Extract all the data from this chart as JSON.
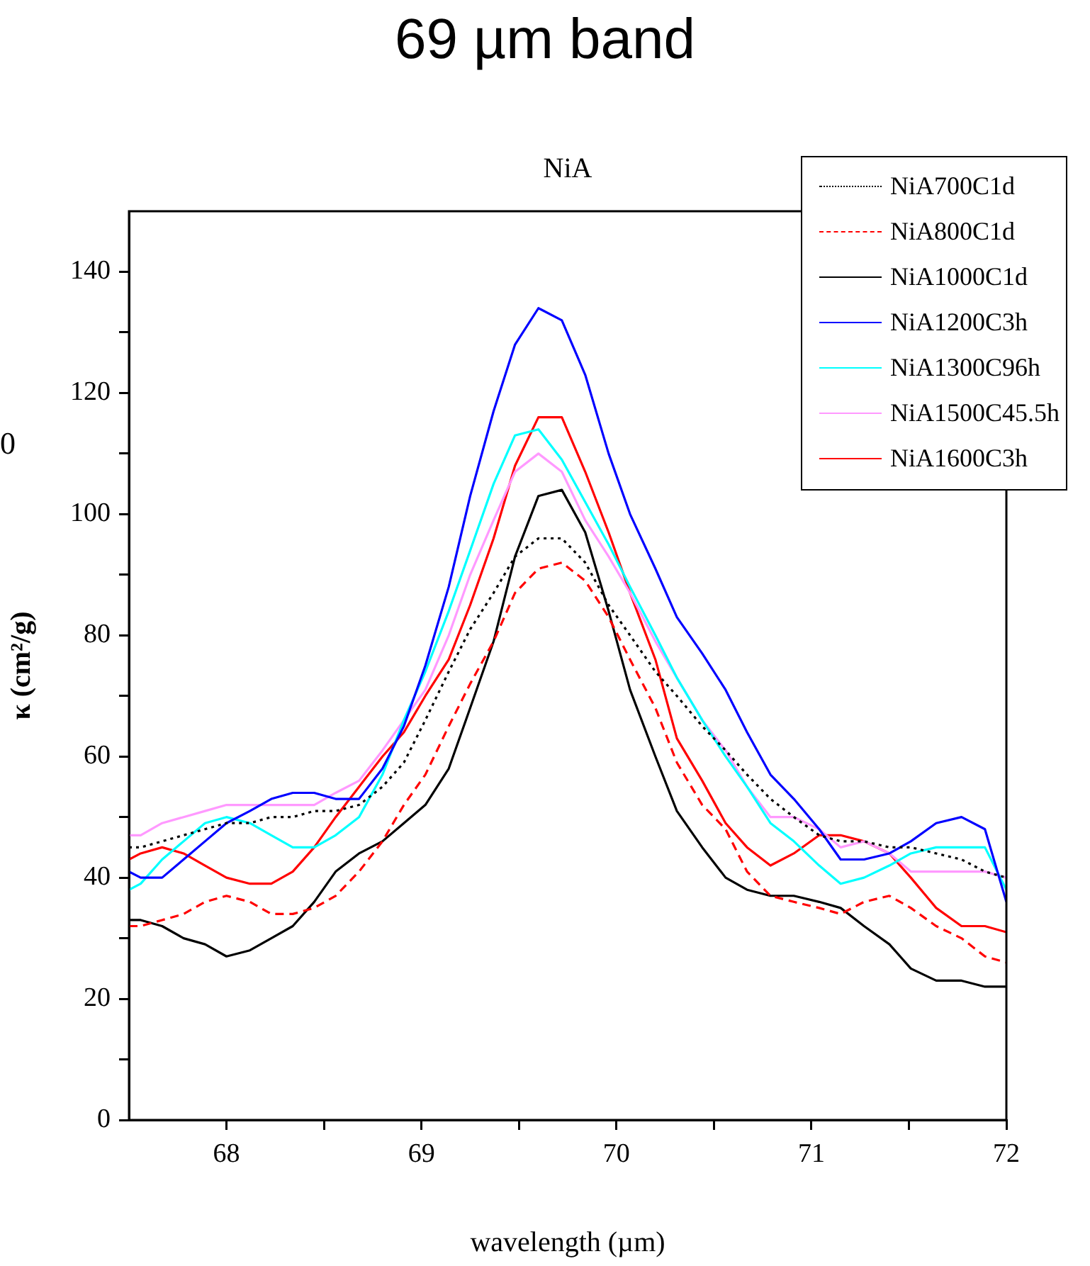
{
  "chart_data": {
    "type": "line",
    "title": "69 µm band",
    "subtitle": "NiA",
    "xlabel": "wavelength (µm)",
    "ylabel": "κ (cm²/g)",
    "annotations": [
      "0"
    ],
    "x": [
      67.5,
      67.56,
      67.67,
      67.78,
      67.89,
      68.0,
      68.12,
      68.23,
      68.34,
      68.45,
      68.56,
      68.68,
      68.8,
      68.91,
      69.02,
      69.14,
      69.25,
      69.37,
      69.48,
      69.6,
      69.72,
      69.84,
      69.96,
      70.07,
      70.2,
      70.31,
      70.44,
      70.56,
      70.67,
      70.79,
      70.91,
      71.04,
      71.15,
      71.27,
      71.4,
      71.51,
      71.64,
      71.77,
      71.89,
      72.0
    ],
    "series": [
      {
        "name": "NiA700C1d",
        "color": "#000000",
        "line_style": "dotted",
        "values": [
          45,
          45,
          46,
          47,
          48,
          49,
          49,
          50,
          50,
          51,
          51,
          52,
          55,
          59,
          66,
          74,
          81,
          87,
          93,
          96,
          96,
          92,
          85,
          80,
          74,
          70,
          65,
          61,
          57,
          53,
          50,
          47,
          46,
          46,
          45,
          45,
          44,
          43,
          41,
          40
        ]
      },
      {
        "name": "NiA800C1d",
        "color": "#ff0000",
        "line_style": "dashed",
        "values": [
          32,
          32,
          33,
          34,
          36,
          37,
          36,
          34,
          34,
          35,
          37,
          41,
          46,
          52,
          57,
          65,
          72,
          79,
          87,
          91,
          92,
          89,
          83,
          76,
          68,
          59,
          52,
          48,
          41,
          37,
          36,
          35,
          34,
          36,
          37,
          35,
          32,
          30,
          27,
          26
        ]
      },
      {
        "name": "NiA1000C1d",
        "color": "#000000",
        "line_style": "solid",
        "values": [
          33,
          33,
          32,
          30,
          29,
          27,
          28,
          30,
          32,
          36,
          41,
          44,
          46,
          49,
          52,
          58,
          68,
          79,
          93,
          103,
          104,
          97,
          84,
          71,
          60,
          51,
          45,
          40,
          38,
          37,
          37,
          36,
          35,
          32,
          29,
          25,
          23,
          23,
          22,
          22
        ]
      },
      {
        "name": "NiA1200C3h",
        "color": "#0000ff",
        "line_style": "solid",
        "values": [
          41,
          40,
          40,
          43,
          46,
          49,
          51,
          53,
          54,
          54,
          53,
          53,
          58,
          65,
          75,
          88,
          103,
          117,
          128,
          134,
          132,
          123,
          110,
          100,
          91,
          83,
          77,
          71,
          64,
          57,
          53,
          48,
          43,
          43,
          44,
          46,
          49,
          50,
          48,
          36
        ]
      },
      {
        "name": "NiA1300C96h",
        "color": "#00ffff",
        "line_style": "solid",
        "values": [
          38,
          39,
          43,
          46,
          49,
          50,
          49,
          47,
          45,
          45,
          47,
          50,
          57,
          66,
          74,
          84,
          94,
          105,
          113,
          114,
          109,
          102,
          95,
          88,
          80,
          73,
          66,
          60,
          55,
          49,
          46,
          42,
          39,
          40,
          42,
          44,
          45,
          45,
          45,
          38
        ]
      },
      {
        "name": "NiA1500C45.5h",
        "color": "#ff99ff",
        "line_style": "solid",
        "values": [
          47,
          47,
          49,
          50,
          51,
          52,
          52,
          52,
          52,
          52,
          54,
          56,
          61,
          66,
          71,
          80,
          90,
          99,
          107,
          110,
          107,
          99,
          93,
          87,
          79,
          73,
          66,
          61,
          55,
          50,
          50,
          48,
          45,
          46,
          44,
          41,
          41,
          41,
          41,
          40
        ]
      },
      {
        "name": "NiA1600C3h",
        "color": "#ff0000",
        "line_style": "solid",
        "values": [
          43,
          44,
          45,
          44,
          42,
          40,
          39,
          39,
          41,
          45,
          50,
          55,
          60,
          64,
          70,
          76,
          85,
          96,
          108,
          116,
          116,
          107,
          97,
          87,
          76,
          63,
          56,
          49,
          45,
          42,
          44,
          47,
          47,
          46,
          44,
          40,
          35,
          32,
          32,
          31
        ]
      }
    ],
    "xlim": [
      67.5,
      72
    ],
    "xticks": [
      68,
      {
        "value": 68.5,
        "label": null
      },
      69,
      {
        "value": 69.5,
        "label": null
      },
      70,
      {
        "value": 70.5,
        "label": null
      },
      71,
      {
        "value": 71.5,
        "label": null
      },
      72
    ],
    "ylim": [
      0,
      150
    ],
    "yticks": [
      0,
      {
        "value": 10,
        "label": null
      },
      20,
      {
        "value": 30,
        "label": null
      },
      40,
      {
        "value": 50,
        "label": null
      },
      60,
      {
        "value": 70,
        "label": null
      },
      80,
      {
        "value": 90,
        "label": null
      },
      100,
      {
        "value": 110,
        "label": null
      },
      120,
      {
        "value": 130,
        "label": null
      },
      140
    ],
    "grid": false,
    "legend": "top right",
    "marker": "none"
  }
}
